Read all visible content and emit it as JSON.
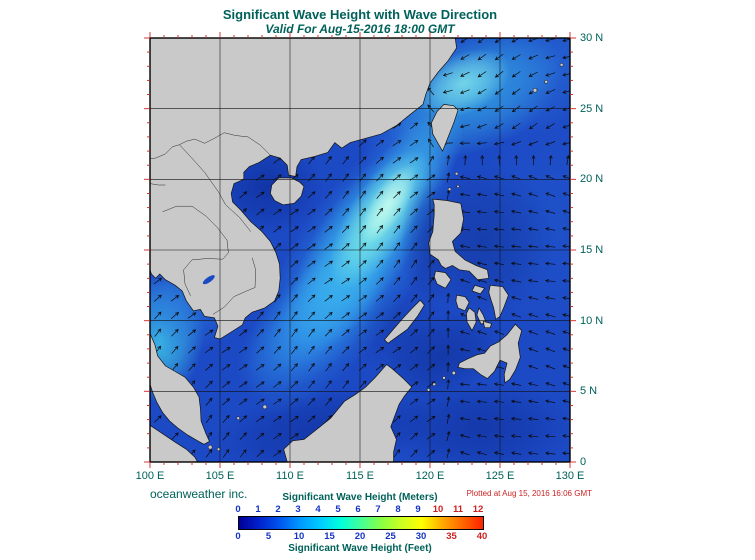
{
  "header": {
    "title": "Significant Wave Height with Wave Direction",
    "subtitle": "Valid For Aug-15-2016 18:00 GMT"
  },
  "map": {
    "x_axis_ticks": [
      {
        "label": "100 E",
        "lon": 100
      },
      {
        "label": "105 E",
        "lon": 105
      },
      {
        "label": "110 E",
        "lon": 110
      },
      {
        "label": "115 E",
        "lon": 115
      },
      {
        "label": "120 E",
        "lon": 120
      },
      {
        "label": "125 E",
        "lon": 125
      },
      {
        "label": "130 E",
        "lon": 130
      }
    ],
    "y_axis_ticks": [
      {
        "label": "0",
        "lat": 0
      },
      {
        "label": "5 N",
        "lat": 5
      },
      {
        "label": "10 N",
        "lat": 10
      },
      {
        "label": "15 N",
        "lat": 15
      },
      {
        "label": "20 N",
        "lat": 20
      },
      {
        "label": "25 N",
        "lat": 25
      },
      {
        "label": "30 N",
        "lat": 30
      }
    ]
  },
  "footer": {
    "credit": "oceanweather inc.",
    "plotted_note": "Plotted at Aug 15, 2016 16:06 GMT"
  },
  "legend": {
    "meters_title": "Significant Wave Height (Meters)",
    "feet_title": "Significant Wave Height (Feet)",
    "meters_ticks": [
      {
        "v": "0",
        "color": "#1434C8"
      },
      {
        "v": "1",
        "color": "#1434C8"
      },
      {
        "v": "2",
        "color": "#1434C8"
      },
      {
        "v": "3",
        "color": "#1434C8"
      },
      {
        "v": "4",
        "color": "#1434C8"
      },
      {
        "v": "5",
        "color": "#1434C8"
      },
      {
        "v": "6",
        "color": "#1434C8"
      },
      {
        "v": "7",
        "color": "#1434C8"
      },
      {
        "v": "8",
        "color": "#1434C8"
      },
      {
        "v": "9",
        "color": "#1434C8"
      },
      {
        "v": "10",
        "color": "#CE1F1F"
      },
      {
        "v": "11",
        "color": "#CE1F1F"
      },
      {
        "v": "12",
        "color": "#CE1F1F"
      }
    ],
    "feet_ticks": [
      {
        "v": "0",
        "color": "#1434C8"
      },
      {
        "v": "5",
        "color": "#1434C8"
      },
      {
        "v": "10",
        "color": "#1434C8"
      },
      {
        "v": "15",
        "color": "#1434C8"
      },
      {
        "v": "20",
        "color": "#1434C8"
      },
      {
        "v": "25",
        "color": "#1434C8"
      },
      {
        "v": "30",
        "color": "#1434C8"
      },
      {
        "v": "35",
        "color": "#CE1F1F"
      },
      {
        "v": "40",
        "color": "#CE1F1F"
      }
    ],
    "gradient": [
      "#000099",
      "#0022CC",
      "#0055EE",
      "#0099FF",
      "#00CCFF",
      "#00FFDD",
      "#44FF99",
      "#88FF44",
      "#CCFF22",
      "#FFFF00",
      "#FFAA00",
      "#FF6600",
      "#FF2200"
    ]
  },
  "colors": {
    "heading": "#00615A",
    "plotted_red": "#CC2222",
    "axis_tick": "#CC2222",
    "ocean_base": "#1C49C4",
    "land_gray": "#C9C9C9"
  },
  "chart_data": {
    "type": "heatmap",
    "title": "Significant Wave Height with Wave Direction",
    "valid_time": "Aug-15-2016 18:00 GMT",
    "plotted_time": "Aug 15, 2016 16:06 GMT",
    "region": {
      "lon_range": [
        "100 E",
        "130 E"
      ],
      "lat_range": [
        "0",
        "30 N"
      ],
      "grid_interval_deg": 5
    },
    "colorbar": {
      "meters_scale": [
        0,
        1,
        2,
        3,
        4,
        5,
        6,
        7,
        8,
        9,
        10,
        11,
        12
      ],
      "feet_scale": [
        0,
        5,
        10,
        15,
        20,
        25,
        30,
        35,
        40
      ],
      "units_primary": "Meters",
      "units_secondary": "Feet"
    },
    "overlay": "wave-direction-arrows",
    "high_wave_regions": [
      "central South China Sea cyan streak ~3-5 m oriented SW-NE",
      "East China Sea patch northeast of Taiwan ~3-4 m",
      "southern Gulf of Thailand / left edge patch ~3 m"
    ],
    "source_label": "oceanweather inc."
  }
}
